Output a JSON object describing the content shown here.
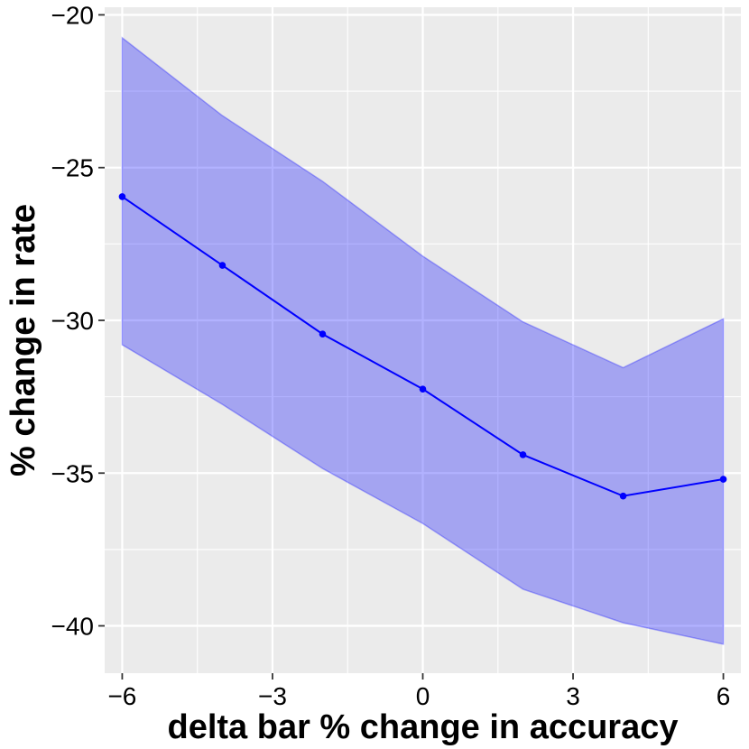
{
  "chart_data": {
    "type": "line",
    "title": "",
    "xlabel": "delta bar % change in accuracy",
    "ylabel": "% change in rate",
    "xlim": [
      -6.35,
      6.35
    ],
    "ylim": [
      -41.55,
      -19.75
    ],
    "x_ticks": [
      -6,
      -3,
      0,
      3,
      6
    ],
    "x_tick_labels": [
      "−6",
      "−3",
      "0",
      "3",
      "6"
    ],
    "y_ticks": [
      -40,
      -35,
      -30,
      -25,
      -20
    ],
    "y_tick_labels": [
      "−40",
      "−35",
      "−30",
      "−25",
      "−20"
    ],
    "grid": true,
    "series": [
      {
        "x": [
          -6,
          -4,
          -2,
          0,
          2,
          4,
          6
        ],
        "y": [
          -25.95,
          -28.2,
          -30.45,
          -32.25,
          -34.4,
          -35.75,
          -35.2
        ],
        "lower": [
          -30.8,
          -32.75,
          -34.85,
          -36.65,
          -38.8,
          -39.9,
          -40.6
        ],
        "upper": [
          -20.75,
          -23.3,
          -25.45,
          -27.9,
          -30.05,
          -31.55,
          -29.95
        ]
      }
    ],
    "colors": {
      "line": "#0000ff",
      "ribbon": "#0000ff",
      "panel": "#ebebeb",
      "grid": "#ffffff"
    }
  }
}
